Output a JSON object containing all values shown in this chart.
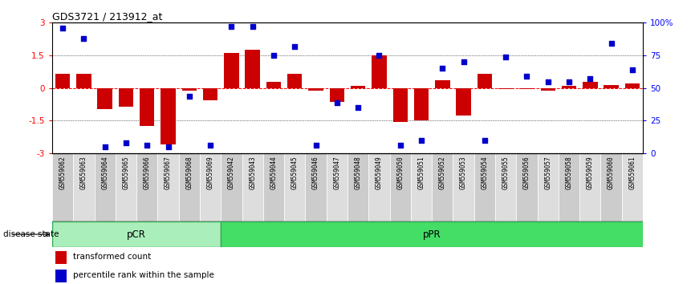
{
  "title": "GDS3721 / 213912_at",
  "samples": [
    "GSM559062",
    "GSM559063",
    "GSM559064",
    "GSM559065",
    "GSM559066",
    "GSM559067",
    "GSM559068",
    "GSM559069",
    "GSM559042",
    "GSM559043",
    "GSM559044",
    "GSM559045",
    "GSM559046",
    "GSM559047",
    "GSM559048",
    "GSM559049",
    "GSM559050",
    "GSM559051",
    "GSM559052",
    "GSM559053",
    "GSM559054",
    "GSM559055",
    "GSM559056",
    "GSM559057",
    "GSM559058",
    "GSM559059",
    "GSM559060",
    "GSM559061"
  ],
  "transformed_count": [
    0.65,
    0.65,
    -0.95,
    -0.85,
    -1.75,
    -2.6,
    -0.12,
    -0.55,
    1.6,
    1.75,
    0.3,
    0.65,
    -0.12,
    -0.65,
    0.1,
    1.5,
    -1.55,
    -1.5,
    0.35,
    -1.25,
    0.65,
    -0.05,
    -0.05,
    -0.12,
    0.1,
    0.3,
    0.12,
    0.2
  ],
  "percentile_rank": [
    96,
    88,
    5,
    8,
    6,
    5,
    44,
    6,
    97,
    97,
    75,
    82,
    6,
    39,
    35,
    75,
    6,
    10,
    65,
    70,
    10,
    74,
    59,
    55,
    55,
    57,
    84,
    64
  ],
  "pCR_count": 8,
  "bar_color": "#CC0000",
  "dot_color": "#0000CC",
  "pCR_color": "#AAEEBB",
  "pPR_color": "#44DD66",
  "ylim": [
    -3,
    3
  ],
  "y2lim": [
    0,
    100
  ],
  "yticks": [
    -3,
    -1.5,
    0,
    1.5,
    3
  ],
  "y2ticks": [
    0,
    25,
    50,
    75,
    100
  ],
  "ytick_labels": [
    "-3",
    "-1.5",
    "0",
    "1.5",
    "3"
  ],
  "y2tick_labels": [
    "0",
    "25",
    "50",
    "75",
    "100%"
  ]
}
